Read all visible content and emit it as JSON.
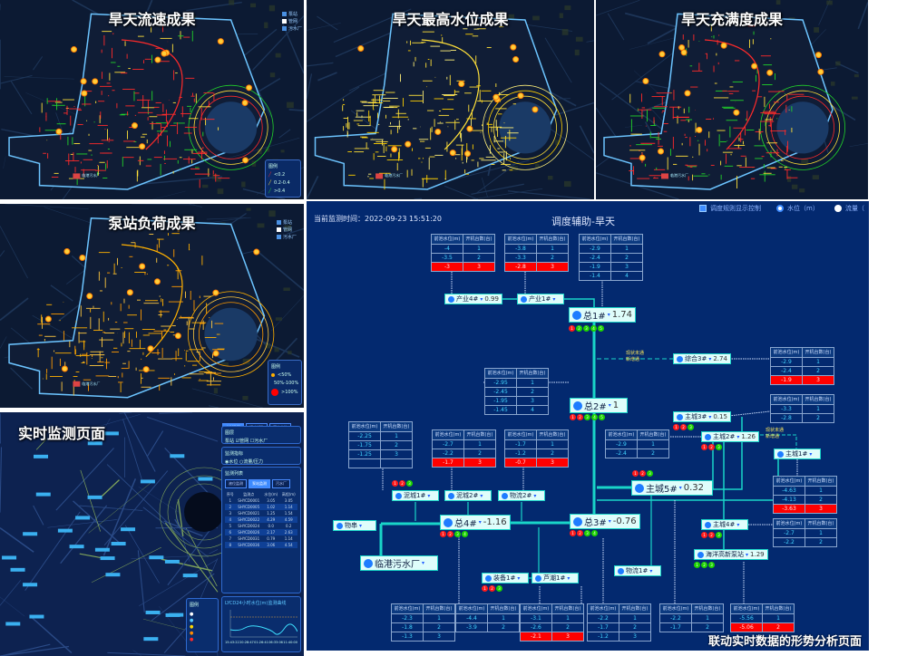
{
  "panels": {
    "flow": {
      "title": "旱天流速成果",
      "legend_title": "图例",
      "legend_items": [
        {
          "label": "<0.2",
          "color": "#ff2a2a"
        },
        {
          "label": "0.2-0.4",
          "color": "#ffe03a"
        },
        {
          "label": ">0.4",
          "color": "#22d32a"
        }
      ],
      "layers": [
        "泵站",
        "管网",
        "污水厂"
      ],
      "plant_label": "临港污水厂"
    },
    "level": {
      "title": "旱天最高水位成果",
      "layers": [
        "泵站",
        "管网",
        "污水厂"
      ],
      "plant_label": "临港污水厂"
    },
    "fullness": {
      "title": "旱天充满度成果",
      "layers": [
        "泵站",
        "管网",
        "污水厂"
      ],
      "plant_label": "临港污水厂"
    },
    "pump_load": {
      "title": "泵站负荷成果",
      "legend_title": "图例",
      "legend_items": [
        {
          "label": "<50%",
          "color": "#ffb000"
        },
        {
          "label": "50%-100%",
          "color": "#ff6a00"
        },
        {
          "label": ">100%",
          "color": "#ff0000"
        }
      ],
      "layers": [
        "泵站",
        "管网",
        "污水厂"
      ],
      "plant_label": "临港污水厂"
    },
    "monitor": {
      "title": "实时监测页面",
      "top_tabs": [
        "实时监测",
        "调度辅助",
        "历史查询"
      ],
      "layer_box": {
        "title": "图层",
        "items": [
          "泵站",
          "管网",
          "污水厂"
        ]
      },
      "index_box": {
        "title": "监测指标",
        "items": [
          "水位",
          "流量/压力"
        ]
      },
      "list_box": {
        "title": "监测列表",
        "tabs": [
          "液位监测",
          "泵站监测",
          "污水厂"
        ],
        "headers": [
          "序号",
          "监测点",
          "水位(m)",
          "高程(m)"
        ],
        "rows": [
          [
            "1",
            "SHYCD0001",
            "3.05",
            "3.05"
          ],
          [
            "2",
            "SHYCD0005",
            "1.02",
            "1.14"
          ],
          [
            "3",
            "SHYCD0021",
            "1.25",
            "1.54"
          ],
          [
            "4",
            "SHYCD0022",
            "4.29",
            "4.59"
          ],
          [
            "5",
            "SHYCD0024",
            "0.0",
            "0.2"
          ],
          [
            "6",
            "SHYCD0026",
            "2.17",
            "2.63"
          ],
          [
            "7",
            "SHYCD0031",
            "0.79",
            "1.14"
          ],
          [
            "8",
            "SHYCD0036",
            "3.06",
            "4.54"
          ]
        ]
      },
      "legend_title": "图例",
      "chart_box": {
        "title": "LYCD24小时水位(m)监测曲线",
        "x_ticks": [
          "15:43:22",
          "20:28:47",
          "01:26:41",
          "06:33:06",
          "11:40:00"
        ]
      }
    }
  },
  "schematic": {
    "time_label": "当前监测时间：2022-09-23 15:51:20",
    "title": "调度辅助-旱天",
    "controls": {
      "rule_checkbox": "调度规则显示控制",
      "radio_level": "水位（m）",
      "radio_flow": "流量（",
      "selected": "level"
    },
    "table_headers": [
      "前池水位(m)",
      "开机台数(台)"
    ],
    "tables": [
      {
        "rows": [
          [
            "-4",
            "1"
          ],
          [
            "-3.5",
            "2"
          ],
          [
            "-3",
            "3"
          ]
        ],
        "red_row": 2
      },
      {
        "rows": [
          [
            "-3.8",
            "1"
          ],
          [
            "-3.3",
            "2"
          ],
          [
            "-2.8",
            "3"
          ]
        ],
        "red_row": 2
      },
      {
        "rows": [
          [
            "-2.9",
            "1"
          ],
          [
            "-2.4",
            "2"
          ],
          [
            "-1.9",
            "3"
          ],
          [
            "-1.4",
            "4"
          ]
        ]
      },
      {
        "rows": [
          [
            "-2.9",
            "1"
          ],
          [
            "-2.4",
            "2"
          ],
          [
            "-1.9",
            "3"
          ]
        ],
        "red_row": 2
      },
      {
        "rows": [
          [
            "-2.95",
            "1"
          ],
          [
            "-2.45",
            "2"
          ],
          [
            "-1.95",
            "3"
          ],
          [
            "-1.45",
            "4"
          ]
        ]
      },
      {
        "rows": [
          [
            "-2.25",
            "1"
          ],
          [
            "-1.75",
            "2"
          ],
          [
            "-1.25",
            "3"
          ],
          [
            "",
            ""
          ]
        ]
      },
      {
        "rows": [
          [
            "-2.7",
            "1"
          ],
          [
            "-2.2",
            "2"
          ],
          [
            "-1.7",
            "3"
          ]
        ],
        "red_row": 2
      },
      {
        "rows": [
          [
            "-1.7",
            "1"
          ],
          [
            "-1.2",
            "2"
          ],
          [
            "-0.7",
            "3"
          ]
        ],
        "red_row": 2
      },
      {
        "rows": [
          [
            "-2.9",
            "1"
          ],
          [
            "-2.4",
            "2"
          ]
        ]
      },
      {
        "rows": [
          [
            "-3.3",
            "1"
          ],
          [
            "-2.8",
            "2"
          ]
        ]
      },
      {
        "rows": [
          [
            "-4.63",
            "1"
          ],
          [
            "-4.13",
            "2"
          ],
          [
            "-3.63",
            "3"
          ]
        ],
        "red_row": 2
      },
      {
        "rows": [
          [
            "-2.7",
            "1"
          ],
          [
            "-2.2",
            "2"
          ]
        ]
      },
      {
        "rows": [
          [
            "-2.3",
            "1"
          ],
          [
            "-1.8",
            "2"
          ],
          [
            "-1.3",
            "3"
          ]
        ]
      },
      {
        "rows": [
          [
            "-4.4",
            "1"
          ],
          [
            "-3.9",
            "2"
          ]
        ]
      },
      {
        "rows": [
          [
            "-3.1",
            "1"
          ],
          [
            "-2.6",
            "2"
          ],
          [
            "-2.1",
            "3"
          ]
        ],
        "red_row": 2
      },
      {
        "rows": [
          [
            "-2.2",
            "1"
          ],
          [
            "-1.7",
            "2"
          ],
          [
            "-1.2",
            "3"
          ]
        ]
      },
      {
        "rows": [
          [
            "-2.2",
            "1"
          ],
          [
            "-1.7",
            "2"
          ]
        ]
      },
      {
        "rows": [
          [
            "-5.56",
            "1"
          ],
          [
            "-5.06",
            "2"
          ]
        ],
        "red_row": 1
      }
    ],
    "nodes": [
      {
        "name": "产业4#",
        "value": "0.99"
      },
      {
        "name": "产业1#",
        "value": ""
      },
      {
        "name": "总1#",
        "value": "1.74",
        "dots": "rgggg"
      },
      {
        "name": "综合3#",
        "value": "2.74"
      },
      {
        "name": "总2#",
        "value": "1",
        "dots": "rrggg"
      },
      {
        "name": "主城3#",
        "value": "0.15",
        "dots": "rrg"
      },
      {
        "name": "主城2#",
        "value": "1.26",
        "dots": "rrg"
      },
      {
        "name": "主城1#",
        "value": ""
      },
      {
        "name": "主城5#",
        "value": "0.32",
        "dots": "rrg"
      },
      {
        "name": "泥城1#",
        "value": "",
        "dots": "rrg"
      },
      {
        "name": "泥城2#",
        "value": ""
      },
      {
        "name": "物流2#",
        "value": ""
      },
      {
        "name": "总4#",
        "value": "-1.16",
        "dots": "rrgg"
      },
      {
        "name": "总3#",
        "value": "-0.76",
        "dots": "rrgg"
      },
      {
        "name": "主城4#",
        "value": "",
        "dots": "rrg"
      },
      {
        "name": "物串",
        "value": ""
      },
      {
        "name": "临港污水厂",
        "value": ""
      },
      {
        "name": "海洋高新泵站",
        "value": "1.29",
        "dots": "ggg"
      },
      {
        "name": "物流1#",
        "value": ""
      },
      {
        "name": "装备1#",
        "value": "",
        "dots": "rrg"
      },
      {
        "name": "芦潮1#",
        "value": ""
      }
    ],
    "notes": [
      [
        "现状未通",
        "新增通"
      ],
      [
        "现状未通",
        "新增通"
      ]
    ],
    "colors": {
      "background": "#03296f",
      "pipe": "#19d5c8",
      "alarm": "#ff0000",
      "ok": "#1ed400"
    }
  },
  "caption": "联动实时数据的形势分析页面"
}
